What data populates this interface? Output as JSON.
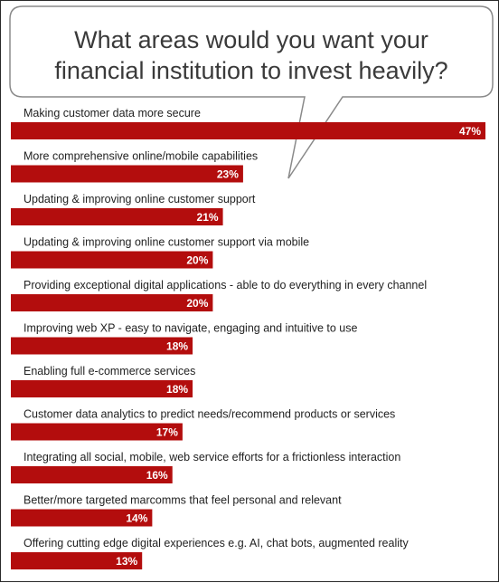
{
  "chart_data": {
    "type": "bar",
    "orientation": "horizontal",
    "title": "What areas would you want your financial institution to invest heavily?",
    "title_lines": [
      "What areas would you want your",
      "financial institution to invest heavily?"
    ],
    "categories": [
      "Making customer data more secure",
      "More comprehensive online/mobile capabilities",
      "Updating & improving online customer support",
      "Updating & improving online customer support via mobile",
      "Providing exceptional digital applications - able to do everything in every channel",
      "Improving web XP - easy to navigate, engaging and intuitive to use",
      "Enabling full e-commerce services",
      "Customer data analytics to predict needs/recommend products or services",
      "Integrating all social, mobile, web service efforts for a frictionless interaction",
      "Better/more targeted marcomms that feel personal and relevant",
      "Offering cutting edge digital experiences e.g. AI, chat bots, augmented reality"
    ],
    "values": [
      47,
      23,
      21,
      20,
      20,
      18,
      18,
      17,
      16,
      14,
      13
    ],
    "value_labels": [
      "47%",
      "23%",
      "21%",
      "20%",
      "20%",
      "18%",
      "18%",
      "17%",
      "16%",
      "14%",
      "13%"
    ],
    "xlim": [
      0,
      47
    ],
    "xlabel": "",
    "ylabel": "",
    "grid": false,
    "legend": "none",
    "bar_color": "#b30d0d",
    "label_color": "#ffffff"
  }
}
